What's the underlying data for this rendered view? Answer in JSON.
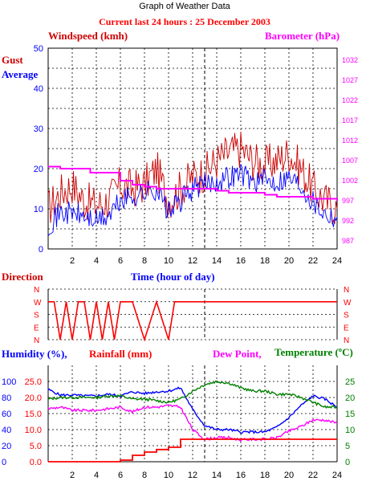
{
  "title": "Graph of Weather Data",
  "subtitle": "Current last 24 hours : 25 December 2003",
  "colors": {
    "red": "#ff0000",
    "blue": "#0000ff",
    "magenta": "#ff00ff",
    "green": "#008000",
    "darkred": "#cc0000",
    "black": "#000000"
  },
  "chart_data": [
    {
      "type": "line",
      "name": "wind",
      "labels": {
        "left_title": "Windspeed (kmh)",
        "right_title": "Barometer (hPa)",
        "gust": "Gust",
        "average": "Average",
        "xlabel": "Time (hour of day)"
      },
      "x_ticks": [
        2,
        4,
        6,
        8,
        10,
        12,
        14,
        16,
        18,
        20,
        22,
        24
      ],
      "xlim": [
        0,
        24
      ],
      "ylim": [
        0,
        50
      ],
      "y_ticks": [
        0,
        10,
        20,
        30,
        40,
        50
      ],
      "y2lim": [
        985,
        1035
      ],
      "y2_ticks": [
        987,
        992,
        997,
        1002,
        1007,
        1012,
        1017,
        1022,
        1027,
        1032
      ],
      "grid": true,
      "marker_x": 13,
      "series": [
        {
          "name": "Gust",
          "color": "#cc0000",
          "x": [
            0,
            1,
            2,
            3,
            4,
            5,
            6,
            7,
            8,
            9,
            10,
            11,
            12,
            13,
            14,
            15,
            16,
            17,
            18,
            19,
            20,
            21,
            22,
            23,
            24
          ],
          "values": [
            10,
            14,
            16,
            12,
            11,
            12,
            16,
            15,
            16,
            20,
            12,
            15,
            18,
            19,
            22,
            24,
            25,
            22,
            21,
            22,
            24,
            20,
            15,
            12,
            10
          ]
        },
        {
          "name": "Average",
          "color": "#0000ff",
          "x": [
            0,
            1,
            2,
            3,
            4,
            5,
            6,
            7,
            8,
            9,
            10,
            11,
            12,
            13,
            14,
            15,
            16,
            17,
            18,
            19,
            20,
            21,
            22,
            23,
            24
          ],
          "values": [
            6,
            9,
            9,
            8,
            7,
            8,
            12,
            13,
            14,
            15,
            9,
            12,
            15,
            16,
            17,
            18,
            19,
            17,
            17,
            17,
            18,
            16,
            12,
            9,
            8
          ]
        },
        {
          "name": "Barometer",
          "color": "#ff00ff",
          "axis": "right",
          "x": [
            0,
            1,
            2,
            3,
            3.5,
            5,
            6,
            7,
            8,
            9,
            10,
            11,
            12,
            13,
            14,
            15,
            16,
            17,
            18,
            19,
            20,
            21,
            22,
            23,
            24
          ],
          "values": [
            1005.5,
            1005,
            1005,
            1005,
            1004,
            1004,
            1002,
            1001,
            1000.5,
            1000,
            1000,
            1000,
            1000,
            1000,
            999.5,
            999,
            999,
            999,
            998.5,
            998,
            998,
            998,
            997.5,
            997.5,
            997
          ]
        }
      ]
    },
    {
      "type": "scatter",
      "name": "direction",
      "labels": {
        "title": "Direction"
      },
      "y_ticks": [
        "N",
        "W",
        "S",
        "E",
        "N"
      ],
      "xlim": [
        0,
        24
      ],
      "series": [
        {
          "name": "Direction",
          "color": "#ff0000",
          "x": [
            0,
            0.5,
            1,
            1.5,
            2,
            2.5,
            3,
            3.5,
            4,
            4.5,
            5,
            5.5,
            6,
            7,
            8,
            9,
            10,
            10.5,
            11,
            12,
            13,
            14,
            15,
            16,
            17,
            18,
            19,
            20,
            21,
            22,
            23,
            24
          ],
          "values": [
            "W",
            "W",
            "N",
            "W",
            "N",
            "W",
            "W",
            "N",
            "W",
            "N",
            "W",
            "N",
            "W",
            "W",
            "N",
            "W",
            "N",
            "W",
            "W",
            "W",
            "W",
            "W",
            "W",
            "W",
            "W",
            "W",
            "W",
            "W",
            "W",
            "W",
            "W",
            "W"
          ]
        }
      ]
    },
    {
      "type": "line",
      "name": "climate",
      "labels": {
        "humidity": "Humidity (%),",
        "rainfall": "Rainfall (mm)",
        "dewpoint": "Dew Point,",
        "temperature": "Temperature (ºC)"
      },
      "x_ticks": [
        2,
        4,
        6,
        8,
        10,
        12,
        14,
        16,
        18,
        20,
        22,
        24
      ],
      "xlim": [
        0,
        24
      ],
      "y_ticks_humidity": [
        0,
        20,
        40,
        60,
        80,
        100
      ],
      "y_ticks_rain": [
        "0.0",
        "5.0",
        "10.0",
        "15.0",
        "20.0",
        "25.0"
      ],
      "y2_ticks": [
        0,
        5,
        10,
        15,
        20,
        25
      ],
      "marker_x": 13,
      "series": [
        {
          "name": "Humidity",
          "color": "#0000ff",
          "x": [
            0,
            1,
            2,
            3,
            4,
            5,
            6,
            7,
            8,
            9,
            10,
            11,
            12,
            13,
            14,
            15,
            16,
            17,
            18,
            19,
            20,
            21,
            22,
            23,
            24
          ],
          "values": [
            90,
            83,
            83,
            82,
            82,
            84,
            82,
            87,
            85,
            87,
            88,
            92,
            65,
            45,
            40,
            40,
            37,
            37,
            37,
            43,
            55,
            70,
            82,
            78,
            68
          ]
        },
        {
          "name": "Rainfall",
          "color": "#ff0000",
          "x": [
            0,
            5.5,
            6,
            7,
            8,
            9,
            10,
            11,
            12,
            13,
            14,
            15,
            16,
            17,
            18,
            19,
            20,
            21,
            22,
            23,
            24
          ],
          "values": [
            0,
            0,
            0.5,
            2,
            3,
            3.8,
            4.5,
            7,
            7,
            7,
            7,
            7,
            7,
            7,
            7,
            7,
            7,
            7,
            7,
            7,
            7
          ]
        },
        {
          "name": "Dew Point",
          "color": "#ff00ff",
          "x": [
            0,
            1,
            2,
            3,
            4,
            5,
            6,
            7,
            8,
            9,
            10,
            11,
            12,
            13,
            14,
            15,
            16,
            17,
            18,
            19,
            20,
            21,
            22,
            23,
            24
          ],
          "values": [
            16.5,
            17,
            16,
            16,
            16,
            16.5,
            17,
            15.5,
            17,
            17,
            17.5,
            17,
            10,
            7,
            7.5,
            7.5,
            6.8,
            7,
            7,
            7.5,
            9.5,
            11,
            13,
            13,
            12
          ]
        },
        {
          "name": "Temperature",
          "color": "#008000",
          "x": [
            0,
            1,
            2,
            3,
            4,
            5,
            6,
            7,
            8,
            9,
            10,
            11,
            12,
            13,
            14,
            15,
            16,
            17,
            18,
            19,
            20,
            21,
            22,
            23,
            24
          ],
          "values": [
            19.5,
            20,
            20,
            20,
            20,
            20.5,
            20.5,
            19.5,
            19.5,
            19,
            18.5,
            19.5,
            22,
            24,
            25,
            24.5,
            23,
            22,
            22,
            21,
            21,
            20,
            18.5,
            17,
            17
          ]
        }
      ]
    }
  ]
}
